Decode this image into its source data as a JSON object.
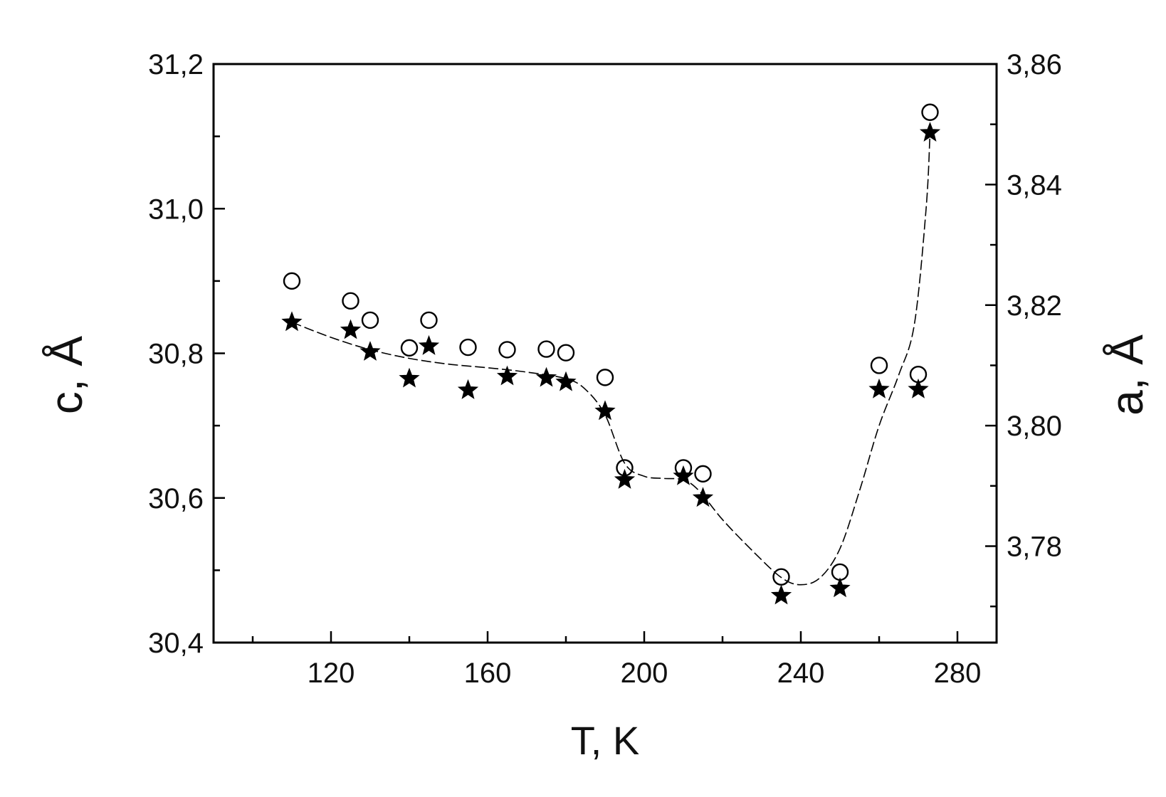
{
  "chart_data": {
    "type": "scatter",
    "title": "",
    "xlabel": "T, K",
    "ylabel_left": "c, Å",
    "ylabel_right": "a, Å",
    "xlim": [
      90,
      290
    ],
    "ylim_left": [
      30.4,
      31.2
    ],
    "ylim_right": [
      3.764,
      3.86
    ],
    "x_ticks": [
      120,
      160,
      200,
      240,
      280
    ],
    "x_tick_labels": [
      "120",
      "160",
      "200",
      "240",
      "280"
    ],
    "y_left_ticks": [
      30.4,
      30.6,
      30.8,
      31.0,
      31.2
    ],
    "y_left_tick_labels": [
      "30,4",
      "30,6",
      "30,8",
      "31,0",
      "31,2"
    ],
    "y_right_ticks": [
      3.78,
      3.8,
      3.82,
      3.84,
      3.86
    ],
    "y_right_tick_labels": [
      "3,78",
      "3,80",
      "3,82",
      "3,84",
      "3,86"
    ],
    "grid": false,
    "legend": "none",
    "series": [
      {
        "axis": "left",
        "marker": "filled-star",
        "color": "#000000",
        "points": [
          [
            110,
            30.843
          ],
          [
            125,
            30.832
          ],
          [
            130,
            30.802
          ],
          [
            140,
            30.765
          ],
          [
            145,
            30.81
          ],
          [
            155,
            30.749
          ],
          [
            165,
            30.768
          ],
          [
            175,
            30.766
          ],
          [
            180,
            30.76
          ],
          [
            190,
            30.72
          ],
          [
            195,
            30.625
          ],
          [
            210,
            30.63
          ],
          [
            215,
            30.6
          ],
          [
            235,
            30.465
          ],
          [
            250,
            30.475
          ],
          [
            260,
            30.75
          ],
          [
            270,
            30.75
          ],
          [
            273,
            31.105
          ]
        ]
      },
      {
        "axis": "right",
        "marker": "open-circle",
        "color": "#000000",
        "points": [
          [
            110,
            3.824
          ],
          [
            125,
            3.8207
          ],
          [
            130,
            3.8175
          ],
          [
            140,
            3.8129
          ],
          [
            145,
            3.8175
          ],
          [
            155,
            3.813
          ],
          [
            165,
            3.8126
          ],
          [
            175,
            3.8127
          ],
          [
            180,
            3.8121
          ],
          [
            190,
            3.808
          ],
          [
            195,
            3.793
          ],
          [
            210,
            3.793
          ],
          [
            215,
            3.792
          ],
          [
            235,
            3.7749
          ],
          [
            250,
            3.7757
          ],
          [
            260,
            3.81
          ],
          [
            270,
            3.8085
          ],
          [
            273,
            3.852
          ]
        ]
      },
      {
        "axis": "left",
        "kind": "guide-line",
        "style": "dashed",
        "color": "#000000",
        "points": [
          [
            110,
            30.843
          ],
          [
            120,
            30.822
          ],
          [
            130,
            30.805
          ],
          [
            140,
            30.793
          ],
          [
            150,
            30.785
          ],
          [
            160,
            30.78
          ],
          [
            170,
            30.774
          ],
          [
            180,
            30.765
          ],
          [
            185,
            30.75
          ],
          [
            190,
            30.715
          ],
          [
            195,
            30.648
          ],
          [
            200,
            30.63
          ],
          [
            205,
            30.627
          ],
          [
            210,
            30.625
          ],
          [
            214,
            30.61
          ],
          [
            220,
            30.57
          ],
          [
            228,
            30.525
          ],
          [
            235,
            30.49
          ],
          [
            240,
            30.48
          ],
          [
            245,
            30.49
          ],
          [
            250,
            30.53
          ],
          [
            255,
            30.61
          ],
          [
            260,
            30.7
          ],
          [
            265,
            30.77
          ],
          [
            269,
            30.84
          ],
          [
            272,
            31.0
          ],
          [
            273,
            31.105
          ]
        ]
      }
    ]
  }
}
